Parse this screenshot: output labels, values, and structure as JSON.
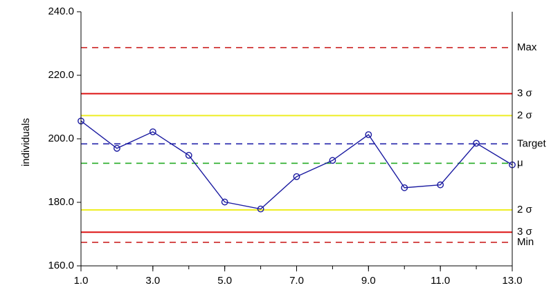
{
  "chart_data": {
    "type": "line",
    "title": "",
    "xlabel": "",
    "ylabel": "individuals",
    "xlim": [
      1,
      13
    ],
    "ylim": [
      160,
      240
    ],
    "x_ticks": [
      {
        "value": 1,
        "label": "1.0"
      },
      {
        "value": 3,
        "label": "3.0"
      },
      {
        "value": 5,
        "label": "5.0"
      },
      {
        "value": 7,
        "label": "7.0"
      },
      {
        "value": 9,
        "label": "9.0"
      },
      {
        "value": 11,
        "label": "11.0"
      },
      {
        "value": 13,
        "label": "13.0"
      }
    ],
    "y_ticks": [
      {
        "value": 160,
        "label": "160.0"
      },
      {
        "value": 180,
        "label": "180.0"
      },
      {
        "value": 200,
        "label": "200.0"
      },
      {
        "value": 220,
        "label": "220.0"
      },
      {
        "value": 240,
        "label": "240.0"
      }
    ],
    "grid": false,
    "series": [
      {
        "color": "#1a1aa0",
        "marker": "circle",
        "x": [
          1,
          2,
          3,
          4,
          5,
          6,
          7,
          8,
          9,
          10,
          11,
          12,
          13
        ],
        "values": [
          205.6,
          197.0,
          202.2,
          194.8,
          180.1,
          177.9,
          188.1,
          193.2,
          201.3,
          184.6,
          185.5,
          198.6,
          191.8
        ]
      }
    ],
    "reference_lines": [
      {
        "label": "Max",
        "value": 228.7,
        "color": "#cc2222",
        "style": "dashed"
      },
      {
        "label": "3 σ",
        "value": 214.2,
        "color": "#dd1111",
        "style": "solid"
      },
      {
        "label": "2 σ",
        "value": 207.3,
        "color": "#eeee22",
        "style": "solid"
      },
      {
        "label": "Target",
        "value": 198.4,
        "color": "#2222aa",
        "style": "dashed"
      },
      {
        "label": "μ",
        "value": 192.3,
        "color": "#22aa22",
        "style": "dashed"
      },
      {
        "label": "2 σ",
        "value": 177.6,
        "color": "#eeee22",
        "style": "solid"
      },
      {
        "label": "3 σ",
        "value": 170.6,
        "color": "#dd1111",
        "style": "solid"
      },
      {
        "label": "Min",
        "value": 167.4,
        "color": "#cc2222",
        "style": "dashed"
      }
    ]
  }
}
